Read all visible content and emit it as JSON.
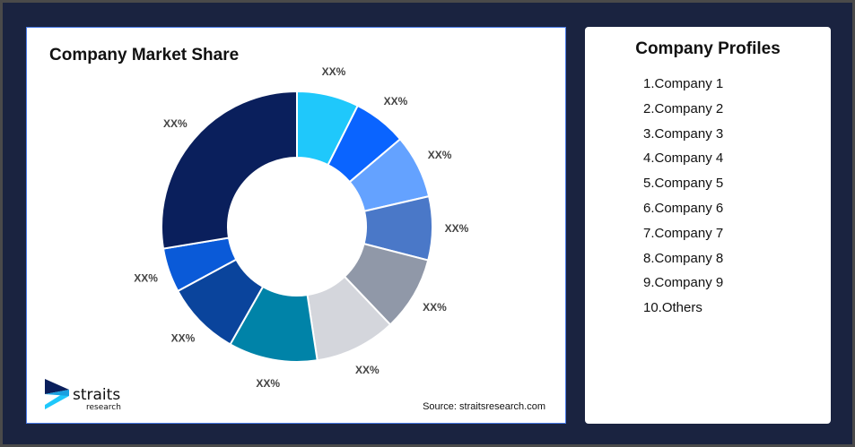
{
  "chart_data": {
    "type": "pie",
    "donut": true,
    "title": "Company Market Share",
    "slices": [
      {
        "label": "XX%",
        "value": 7.4,
        "color": "#1fc8fb"
      },
      {
        "label": "XX%",
        "value": 6.4,
        "color": "#0a64ff"
      },
      {
        "label": "XX%",
        "value": 7.6,
        "color": "#64a2ff"
      },
      {
        "label": "XX%",
        "value": 7.6,
        "color": "#4a78c8"
      },
      {
        "label": "XX%",
        "value": 8.9,
        "color": "#9098a8"
      },
      {
        "label": "XX%",
        "value": 9.7,
        "color": "#d4d6dc"
      },
      {
        "label": "XX%",
        "value": 10.6,
        "color": "#0083a8"
      },
      {
        "label": "XX%",
        "value": 8.9,
        "color": "#0a449c"
      },
      {
        "label": "XX%",
        "value": 5.3,
        "color": "#0a5ad8"
      },
      {
        "label": "XX%",
        "value": 27.6,
        "color": "#0a1f5c"
      }
    ],
    "source": "Source: straitsresearch.com"
  },
  "logo": {
    "text1": "straits",
    "text2": "research"
  },
  "profiles": {
    "title": "Company Profiles",
    "items": [
      "1.Company 1",
      "2.Company 2",
      "3.Company 3",
      "4.Company 4",
      "5.Company 5",
      "6.Company 6",
      "7.Company 7",
      "8.Company 8",
      "9.Company 9",
      "10.Others"
    ]
  }
}
